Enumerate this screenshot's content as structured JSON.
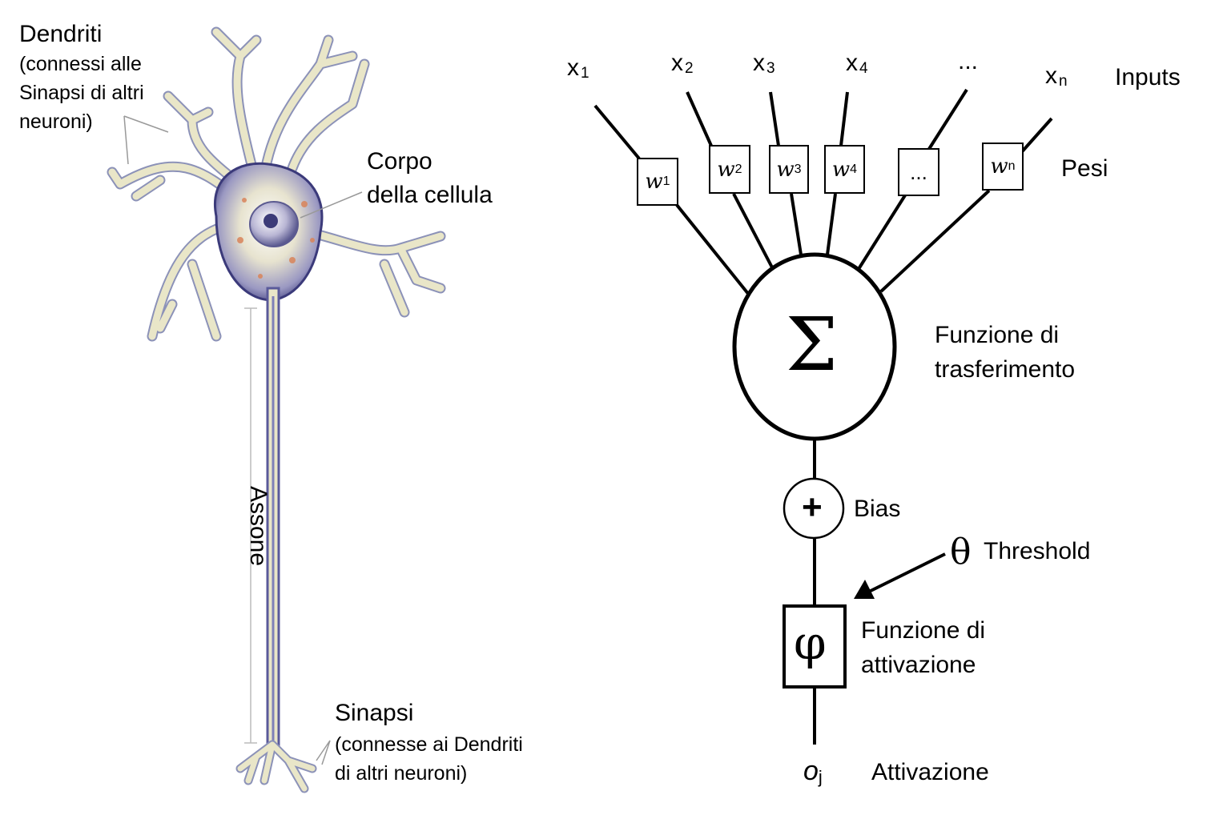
{
  "neuron": {
    "dendrites": {
      "title": "Dendriti",
      "line1": "(connessi alle",
      "line2": "Sinapsi di altri",
      "line3": "neuroni)"
    },
    "body": {
      "line1": "Corpo",
      "line2": "della cellula"
    },
    "axon": "Assone",
    "synapse": {
      "title": "Sinapsi",
      "line1": "(connesse ai Dendriti",
      "line2": "di altri neuroni)"
    }
  },
  "perceptron": {
    "inputs": [
      {
        "base": "x",
        "sub": "1"
      },
      {
        "base": "x",
        "sub": "2"
      },
      {
        "base": "x",
        "sub": "3"
      },
      {
        "base": "x",
        "sub": "4"
      },
      {
        "base": "...",
        "sub": ""
      },
      {
        "base": "x",
        "sub": "n"
      }
    ],
    "inputs_label": "Inputs",
    "weights": [
      {
        "base": "w",
        "sub": "1"
      },
      {
        "base": "w",
        "sub": "2"
      },
      {
        "base": "w",
        "sub": "3"
      },
      {
        "base": "w",
        "sub": "4"
      },
      {
        "base": "...",
        "sub": ""
      },
      {
        "base": "w",
        "sub": "n"
      }
    ],
    "weights_label": "Pesi",
    "sum_symbol": "Σ",
    "transfer_label": {
      "line1": "Funzione di",
      "line2": "trasferimento"
    },
    "bias_symbol": "+",
    "bias_label": "Bias",
    "threshold_symbol": "θ",
    "threshold_label": "Threshold",
    "activation_symbol": "φ",
    "activation_fn_label": {
      "line1": "Funzione di",
      "line2": "attivazione"
    },
    "output": {
      "base": "o",
      "sub": "j"
    },
    "output_label": "Attivazione"
  },
  "colors": {
    "dendrite_fill": "#e9e6c8",
    "dendrite_edge": "#8c92b8",
    "axon": "#5a5a9a",
    "soma_core": "#c9c2dd",
    "line": "#000000"
  }
}
